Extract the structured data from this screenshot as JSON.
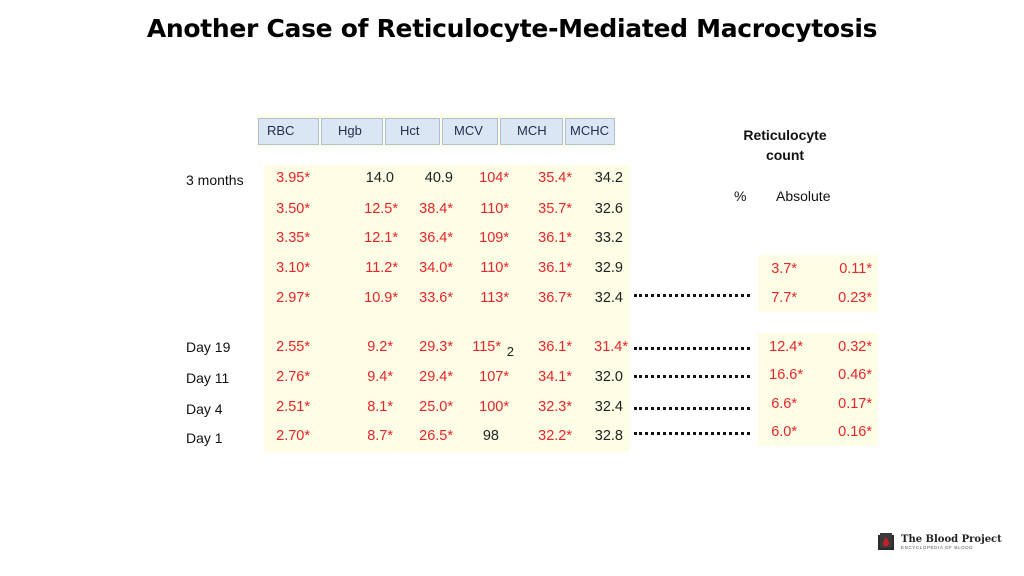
{
  "title": "Another Case of Reticulocyte-Mediated Macrocytosis",
  "table": {
    "columns": [
      "RBC",
      "Hgb",
      "Hct",
      "MCV",
      "MCH",
      "MCHC"
    ],
    "row_labels": [
      "3 months",
      "",
      "",
      "",
      "",
      "Day 19",
      "Day 11",
      "Day 4",
      "Day 1"
    ],
    "rows": [
      [
        "3.95*",
        "14.0",
        "40.9",
        "104*",
        "35.4*",
        "34.2"
      ],
      [
        "3.50*",
        "12.5*",
        "38.4*",
        "110*",
        "35.7*",
        "32.6"
      ],
      [
        "3.35*",
        "12.1*",
        "36.4*",
        "109*",
        "36.1*",
        "33.2"
      ],
      [
        "3.10*",
        "11.2*",
        "34.0*",
        "110*",
        "36.1*",
        "32.9"
      ],
      [
        "2.97*",
        "10.9*",
        "33.6*",
        "113*",
        "36.7*",
        "32.4"
      ],
      [
        "2.55*",
        "9.2*",
        "29.3*",
        "115*",
        "36.1*",
        "31.4*"
      ],
      [
        "2.76*",
        "9.4*",
        "29.4*",
        "107*",
        "34.1*",
        "32.0"
      ],
      [
        "2.51*",
        "8.1*",
        "25.0*",
        "100*",
        "32.3*",
        "32.4"
      ],
      [
        "2.70*",
        "8.7*",
        "26.5*",
        "98",
        "32.2*",
        "32.8"
      ]
    ],
    "subscript_note": "2"
  },
  "reticulocyte": {
    "title_line1": "Reticulocyte",
    "title_line2": "count",
    "col_percent": "%",
    "col_absolute": "Absolute",
    "rows": [
      [
        "3.7*",
        "0.11*"
      ],
      [
        "7.7*",
        "0.23*"
      ],
      [
        "12.4*",
        "0.32*"
      ],
      [
        "16.6*",
        "0.46*"
      ],
      [
        "6.6*",
        "0.17*"
      ],
      [
        "6.0*",
        "0.16*"
      ]
    ]
  },
  "logo": {
    "name": "The Blood Project",
    "tagline": "ENCYCLOPEDIA OF BLOOD"
  }
}
